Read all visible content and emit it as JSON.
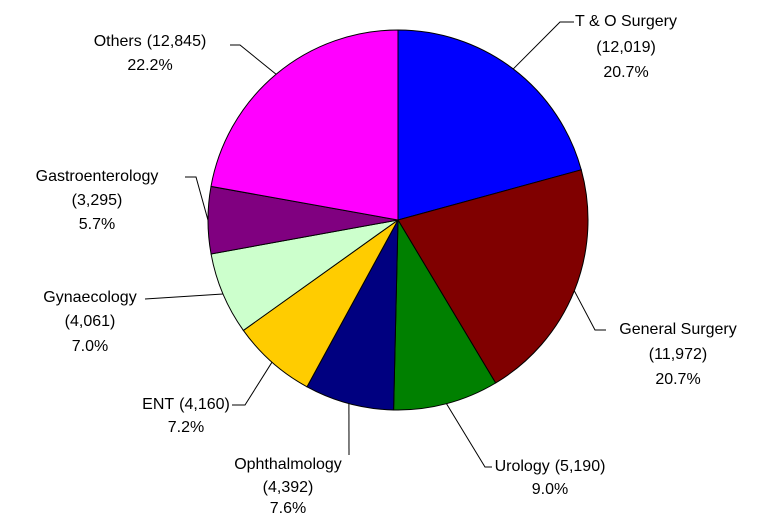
{
  "chart_data": {
    "type": "pie",
    "categories": [
      "T & O Surgery",
      "General Surgery",
      "Urology",
      "Ophthalmology",
      "ENT",
      "Gynaecology",
      "Gastroenterology",
      "Others"
    ],
    "values": [
      12019,
      11972,
      5190,
      4392,
      4160,
      4061,
      3295,
      12845
    ],
    "value_labels": [
      "(12,019)",
      "(11,972)",
      "(5,190)",
      "(4,392)",
      "(4,160)",
      "(4,061)",
      "(3,295)",
      "(12,845)"
    ],
    "percentages": [
      20.7,
      20.7,
      9.0,
      7.6,
      7.2,
      7.0,
      5.7,
      22.2
    ],
    "percentage_labels": [
      "20.7%",
      "20.7%",
      "9.0%",
      "7.6%",
      "7.2%",
      "7.0%",
      "5.7%",
      "22.2%"
    ],
    "colors": [
      "#0000ff",
      "#800000",
      "#008000",
      "#000080",
      "#ffcc00",
      "#ccffcc",
      "#800080",
      "#ff00ff"
    ]
  }
}
